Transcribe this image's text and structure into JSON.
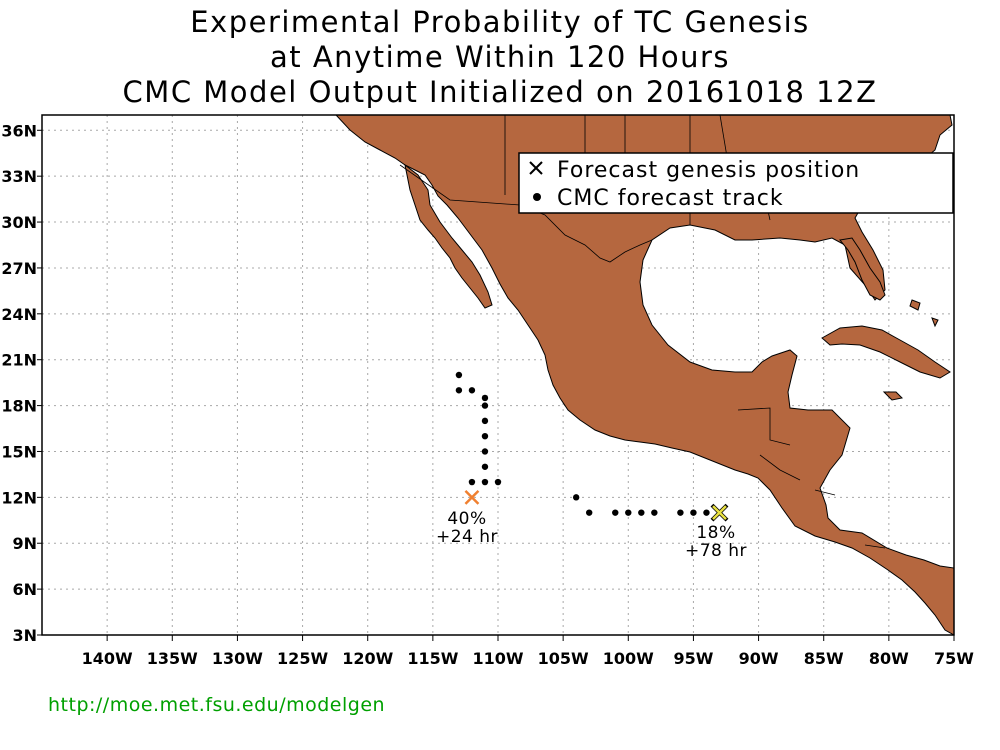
{
  "title": {
    "line1": "Experimental Probability of TC Genesis",
    "line2": "at Anytime Within 120 Hours",
    "line3": "CMC Model Output Initialized on 20161018 12Z"
  },
  "legend": {
    "genesis_label": "Forecast genesis position",
    "track_label": "CMC forecast track"
  },
  "axes": {
    "lon_range": [
      -145,
      -75
    ],
    "lat_range": [
      3,
      37
    ],
    "lon_ticks": [
      "140W",
      "135W",
      "130W",
      "125W",
      "120W",
      "115W",
      "110W",
      "105W",
      "100W",
      "95W",
      "90W",
      "85W",
      "80W",
      "75W"
    ],
    "lat_ticks": [
      "36N",
      "33N",
      "30N",
      "27N",
      "24N",
      "21N",
      "18N",
      "15N",
      "12N",
      "9N",
      "6N",
      "3N"
    ]
  },
  "colors": {
    "land": "#b5673f",
    "genesis_west": "#f08030",
    "genesis_east": "#e8e040",
    "footer": "#00a000"
  },
  "genesis": [
    {
      "name": "west",
      "lon": -112,
      "lat": 12,
      "prob": "40%",
      "lead": "+24 hr"
    },
    {
      "name": "east",
      "lon": -93,
      "lat": 11,
      "prob": "18%",
      "lead": "+78 hr"
    }
  ],
  "tracks": {
    "west": [
      [
        -113,
        20
      ],
      [
        -113,
        19
      ],
      [
        -112,
        19
      ],
      [
        -111,
        18.5
      ],
      [
        -111,
        18
      ],
      [
        -111,
        17
      ],
      [
        -111,
        16
      ],
      [
        -111,
        15
      ],
      [
        -111,
        14
      ],
      [
        -111,
        13
      ],
      [
        -112,
        13
      ],
      [
        -110,
        13
      ]
    ],
    "east": [
      [
        -104,
        12
      ],
      [
        -103,
        11
      ],
      [
        -101,
        11
      ],
      [
        -100,
        11
      ],
      [
        -99,
        11
      ],
      [
        -98,
        11
      ],
      [
        -96,
        11
      ],
      [
        -95,
        11
      ],
      [
        -94,
        11
      ]
    ]
  },
  "footer": {
    "url": "http://moe.met.fsu.edu/modelgen"
  }
}
